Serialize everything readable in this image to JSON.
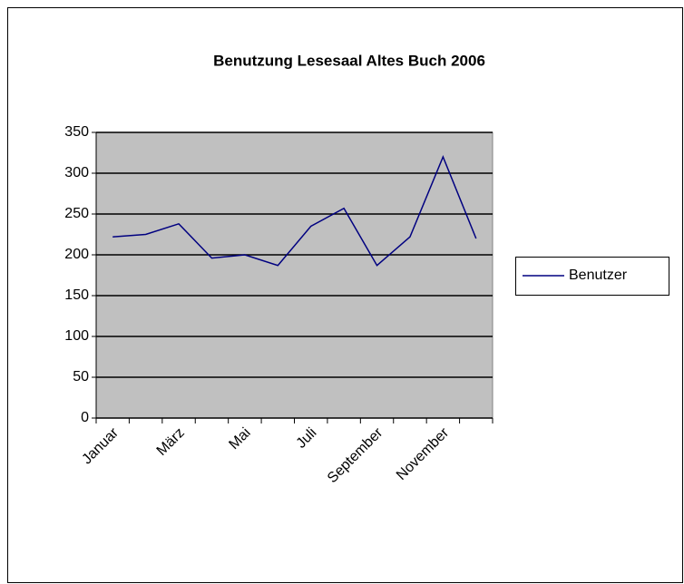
{
  "chart_data": {
    "type": "line",
    "title": "Benutzung Lesesaal Altes Buch 2006",
    "categories": [
      "Januar",
      null,
      "März",
      null,
      "Mai",
      null,
      "Juli",
      null,
      "September",
      null,
      "November",
      null
    ],
    "series": [
      {
        "name": "Benutzer",
        "color": "#000080",
        "values": [
          222,
          225,
          238,
          196,
          200,
          187,
          235,
          257,
          187,
          222,
          320,
          220
        ]
      }
    ],
    "ylim": [
      0,
      350
    ],
    "yticks": [
      0,
      50,
      100,
      150,
      200,
      250,
      300,
      350
    ],
    "grid": true,
    "legend": "right"
  }
}
